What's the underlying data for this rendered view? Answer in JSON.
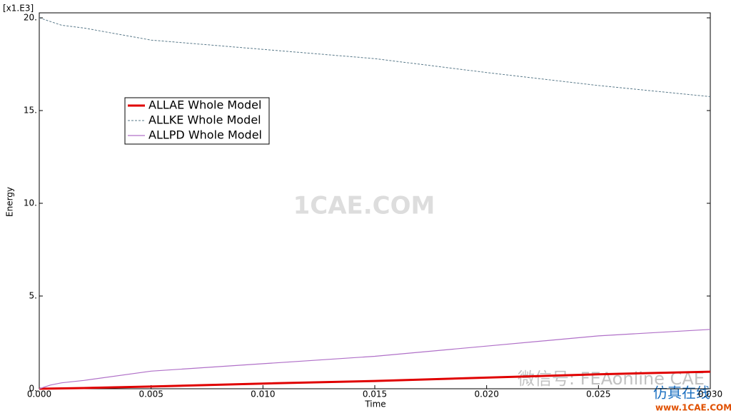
{
  "chart_data": {
    "type": "line",
    "y_multiplier": "[x1.E3]",
    "x_label": "Time",
    "y_label": "Energy",
    "x": [
      0,
      0.0005,
      0.001,
      0.002,
      0.005,
      0.01,
      0.015,
      0.02,
      0.025,
      0.03
    ],
    "series": [
      {
        "name": "ALLAE Whole Model",
        "color": "#e00000",
        "line_style": "solid",
        "line_width": 3,
        "values": [
          0,
          0.01,
          0.02,
          0.04,
          0.12,
          0.28,
          0.42,
          0.6,
          0.78,
          0.92
        ]
      },
      {
        "name": "ALLKE Whole Model",
        "color": "#5a7a8a",
        "line_style": "dashed",
        "line_width": 1,
        "values": [
          20.0,
          19.8,
          19.6,
          19.45,
          18.8,
          18.3,
          17.8,
          17.05,
          16.35,
          15.75
        ]
      },
      {
        "name": "ALLPD Whole Model",
        "color": "#b070c8",
        "line_style": "solid",
        "line_width": 1.2,
        "values": [
          0,
          0.2,
          0.32,
          0.45,
          0.95,
          1.35,
          1.75,
          2.3,
          2.85,
          3.2
        ]
      }
    ],
    "xlim": [
      0,
      0.03
    ],
    "xticks": [
      {
        "value": 0,
        "label": "0.000"
      },
      0.005,
      {
        "value": 0.01,
        "label": "0.010"
      },
      0.015,
      {
        "value": 0.02,
        "label": "0.020"
      },
      0.025,
      {
        "value": 0.03,
        "label": "0.030"
      }
    ],
    "ylim": [
      0,
      20
    ],
    "yticks": [
      {
        "value": 0,
        "label": "0."
      },
      {
        "value": 5,
        "label": "5."
      },
      {
        "value": 10,
        "label": "10."
      },
      {
        "value": 15,
        "label": "15."
      },
      {
        "value": 20,
        "label": "20."
      }
    ],
    "grid": false,
    "legend": "upper left",
    "annotations": [
      "1CAE.COM",
      "微信号: FEAonline CAE",
      "仿真在线",
      "www.1CAE.COM"
    ]
  }
}
